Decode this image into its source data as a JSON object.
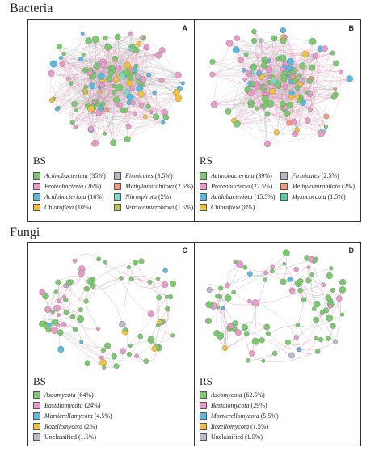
{
  "bacteria": {
    "title": "Bacteria",
    "panels": [
      {
        "letter": "A",
        "group": "BS",
        "legend": [
          {
            "name": "Actinobacteriota",
            "pct": "(35%)",
            "color": "#7bc96f",
            "italic": true
          },
          {
            "name": "Firmicutes",
            "pct": "(3.5%)",
            "color": "#b8b8c8",
            "italic": true
          },
          {
            "name": "Proteobacteria",
            "pct": "(26%)",
            "color": "#e89ac8",
            "italic": true
          },
          {
            "name": "Methylomirabilota",
            "pct": "(2.5%)",
            "color": "#f29a80",
            "italic": true
          },
          {
            "name": "Acidobacteriota",
            "pct": "(16%)",
            "color": "#5bb8e0",
            "italic": true
          },
          {
            "name": "Nitrospirota",
            "pct": "(2%)",
            "color": "#7ad9c8",
            "italic": true
          },
          {
            "name": "Chloroflexi",
            "pct": "(10%)",
            "color": "#f0c040",
            "italic": true
          },
          {
            "name": "Verrucomicrobiota",
            "pct": "(1.5%)",
            "color": "#b8c860",
            "italic": true
          }
        ]
      },
      {
        "letter": "B",
        "group": "RS",
        "legend": [
          {
            "name": "Actinobacteriota",
            "pct": "(39%)",
            "color": "#7bc96f",
            "italic": true
          },
          {
            "name": "Firmicutes",
            "pct": "(2.5%)",
            "color": "#b8b8c8",
            "italic": true
          },
          {
            "name": "Proteobacteria",
            "pct": "(27.5%)",
            "color": "#e89ac8",
            "italic": true
          },
          {
            "name": "Methylomirabilota",
            "pct": "(2%)",
            "color": "#f29a80",
            "italic": true
          },
          {
            "name": "Acidobacteriota",
            "pct": "(15.5%)",
            "color": "#5bb8e0",
            "italic": true
          },
          {
            "name": "Myxococcota",
            "pct": "(1.5%)",
            "color": "#4ecfa8",
            "italic": true
          },
          {
            "name": "Chloroflexi",
            "pct": "(8%)",
            "color": "#f0c040",
            "italic": true
          }
        ]
      }
    ]
  },
  "fungi": {
    "title": "Fungi",
    "panels": [
      {
        "letter": "C",
        "group": "BS",
        "legend": [
          {
            "name": "Ascomycota",
            "pct": "(64%)",
            "color": "#7bc96f",
            "italic": true
          },
          {
            "name": "Basidiomycota",
            "pct": "(24%)",
            "color": "#e89ac8",
            "italic": true
          },
          {
            "name": "Mortierellomycota",
            "pct": "(4.5%)",
            "color": "#5bb8e0",
            "italic": true
          },
          {
            "name": "Rozellomycota",
            "pct": "(2%)",
            "color": "#f0c040",
            "italic": true
          },
          {
            "name": "Unclassified",
            "pct": "(1.5%)",
            "color": "#b8b8c8",
            "italic": false
          }
        ]
      },
      {
        "letter": "D",
        "group": "RS",
        "legend": [
          {
            "name": "Ascomycota",
            "pct": "(62.5%)",
            "color": "#7bc96f",
            "italic": true
          },
          {
            "name": "Basidiomycota",
            "pct": "(29%)",
            "color": "#e89ac8",
            "italic": true
          },
          {
            "name": "Mortierellomycota",
            "pct": "(5.5%)",
            "color": "#5bb8e0",
            "italic": true
          },
          {
            "name": "Rozellomycota",
            "pct": "(1.5%)",
            "color": "#f0c040",
            "italic": true
          },
          {
            "name": "Unclassified",
            "pct": "(1.5%)",
            "color": "#b8b8c8",
            "italic": false
          }
        ]
      }
    ]
  },
  "edge_colors": {
    "positive": "#e890b8",
    "negative": "#8fcfb0"
  }
}
